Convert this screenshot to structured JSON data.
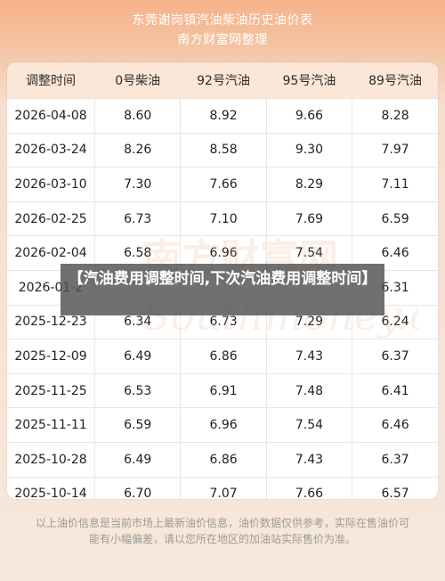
{
  "header": {
    "title_line1": "东莞谢岗镇汽油柴油历史油价表",
    "title_line2": "南方财富网整理"
  },
  "table": {
    "columns": [
      "调整时间",
      "0号柴油",
      "92号汽油",
      "95号汽油",
      "89号汽油"
    ],
    "rows": [
      [
        "2026-04-08",
        "8.60",
        "8.92",
        "9.66",
        "8.28"
      ],
      [
        "2026-03-24",
        "8.26",
        "8.58",
        "9.30",
        "7.97"
      ],
      [
        "2026-03-10",
        "7.30",
        "7.66",
        "8.29",
        "7.11"
      ],
      [
        "2026-02-25",
        "6.73",
        "7.10",
        "7.69",
        "6.59"
      ],
      [
        "2026-02-04",
        "6.58",
        "6.96",
        "7.54",
        "6.46"
      ],
      [
        "2026-01-2",
        "",
        "",
        "",
        "6.31"
      ],
      [
        "2025-12-23",
        "6.34",
        "6.73",
        "7.29",
        "6.24"
      ],
      [
        "2025-12-09",
        "6.49",
        "6.86",
        "7.43",
        "6.37"
      ],
      [
        "2025-11-25",
        "6.53",
        "6.91",
        "7.48",
        "6.41"
      ],
      [
        "2025-11-11",
        "6.59",
        "6.96",
        "7.54",
        "6.46"
      ],
      [
        "2025-10-28",
        "6.49",
        "6.86",
        "7.43",
        "6.37"
      ],
      [
        "2025-10-14",
        "6.70",
        "7.07",
        "7.66",
        "6.57"
      ]
    ]
  },
  "footer": {
    "note": "以上油价信息是当前市场上最新油价信息，油价数据仅供参考，实际在售油价可能有小幅偏差，请以您所在地区的加油站实际售价为准。"
  },
  "overlay": {
    "text": "【汽油费用调整时间,下次汽油费用调整时间】"
  },
  "watermark": {
    "text_cn": "南方财富网",
    "text_en": "Southmoney.com"
  },
  "colors": {
    "header_bg": "#f6b28a",
    "table_head_bg": "#fbe7d7",
    "overlay_bg": "#505050"
  }
}
